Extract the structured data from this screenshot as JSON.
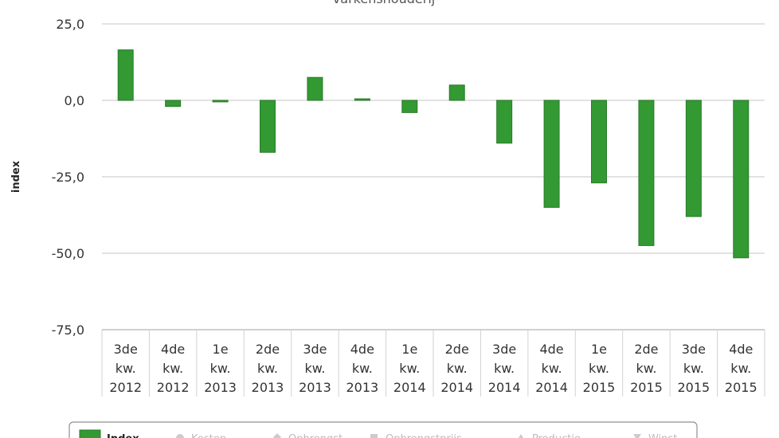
{
  "chart_data": {
    "type": "bar",
    "title": "varkenshouderij",
    "ylabel": "index",
    "ylim": [
      -75,
      25
    ],
    "yticks": [
      "25,0",
      "0,0",
      "-25,0",
      "-50,0",
      "-75,0"
    ],
    "ytick_values": [
      25,
      0,
      -25,
      -50,
      -75
    ],
    "categories": [
      [
        "3de",
        "kw.",
        "2012"
      ],
      [
        "4de",
        "kw.",
        "2012"
      ],
      [
        "1e",
        "kw.",
        "2013"
      ],
      [
        "2de",
        "kw.",
        "2013"
      ],
      [
        "3de",
        "kw.",
        "2013"
      ],
      [
        "4de",
        "kw.",
        "2013"
      ],
      [
        "1e",
        "kw.",
        "2014"
      ],
      [
        "2de",
        "kw.",
        "2014"
      ],
      [
        "3de",
        "kw.",
        "2014"
      ],
      [
        "4de",
        "kw.",
        "2014"
      ],
      [
        "1e",
        "kw.",
        "2015"
      ],
      [
        "2de",
        "kw.",
        "2015"
      ],
      [
        "3de",
        "kw.",
        "2015"
      ],
      [
        "4de",
        "kw.",
        "2015"
      ]
    ],
    "series": [
      {
        "name": "Index",
        "color": "#339933",
        "values": [
          16.5,
          -2,
          -0.5,
          -17,
          7.5,
          0.5,
          -4,
          5,
          -14,
          -35,
          -27,
          -47.5,
          -38,
          -51.5
        ]
      }
    ],
    "legend": {
      "position": "bottom",
      "items": [
        {
          "label": "Index",
          "active": true,
          "marker": "square",
          "color": "#339933"
        },
        {
          "label": "Kosten",
          "active": false,
          "marker": "circle",
          "color": "#cccccc"
        },
        {
          "label": "Opbrengst",
          "active": false,
          "marker": "diamond",
          "color": "#cccccc"
        },
        {
          "label": "Opbrengstprijs",
          "active": false,
          "marker": "square",
          "color": "#cccccc"
        },
        {
          "label": "Productie",
          "active": false,
          "marker": "triangle",
          "color": "#cccccc"
        },
        {
          "label": "Winst",
          "active": false,
          "marker": "triangle-down",
          "color": "#cccccc"
        }
      ]
    },
    "grid": true
  }
}
